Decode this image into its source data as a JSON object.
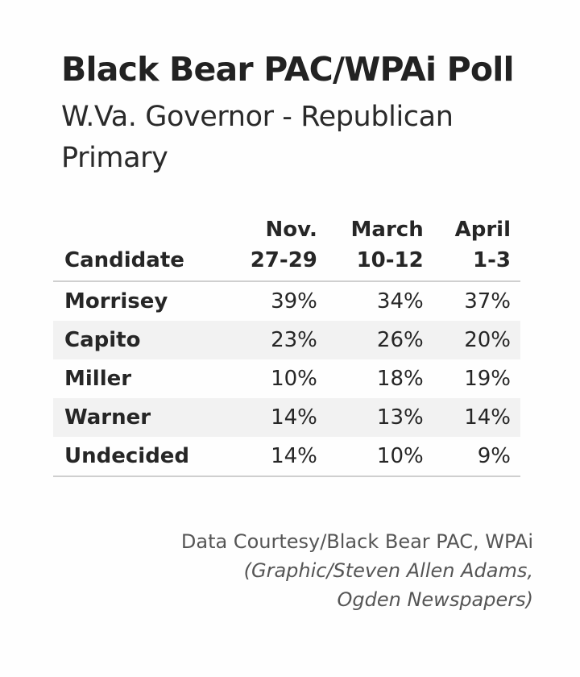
{
  "header": {
    "title": "Black Bear PAC/WPAi Poll",
    "subtitle": "W.Va. Governor - Republican Primary"
  },
  "table": {
    "columns": [
      {
        "label": "Candidate"
      },
      {
        "label_line1": "Nov.",
        "label_line2": "27-29"
      },
      {
        "label_line1": "March",
        "label_line2": "10-12"
      },
      {
        "label_line1": "April",
        "label_line2": "1-3"
      }
    ],
    "rows": [
      {
        "candidate": "Morrisey",
        "values": [
          "39%",
          "34%",
          "37%"
        ]
      },
      {
        "candidate": "Capito",
        "values": [
          "23%",
          "26%",
          "20%"
        ]
      },
      {
        "candidate": "Miller",
        "values": [
          "10%",
          "18%",
          "19%"
        ]
      },
      {
        "candidate": "Warner",
        "values": [
          "14%",
          "13%",
          "14%"
        ]
      },
      {
        "candidate": "Undecided",
        "values": [
          "14%",
          "10%",
          "9%"
        ]
      }
    ]
  },
  "credits": {
    "line1": "Data Courtesy/Black Bear PAC, WPAi",
    "line2": "(Graphic/Steven Allen Adams,",
    "line3": "Ogden Newspapers)"
  },
  "chart_data": {
    "type": "table",
    "title": "Black Bear PAC/WPAi Poll",
    "subtitle": "W.Va. Governor - Republican Primary",
    "columns": [
      "Candidate",
      "Nov. 27-29",
      "March 10-12",
      "April 1-3"
    ],
    "categories": [
      "Morrisey",
      "Capito",
      "Miller",
      "Warner",
      "Undecided"
    ],
    "series": [
      {
        "name": "Nov. 27-29",
        "values": [
          39,
          23,
          10,
          14,
          14
        ]
      },
      {
        "name": "March 10-12",
        "values": [
          34,
          26,
          18,
          13,
          10
        ]
      },
      {
        "name": "April 1-3",
        "values": [
          37,
          20,
          19,
          14,
          9
        ]
      }
    ],
    "unit": "%"
  }
}
